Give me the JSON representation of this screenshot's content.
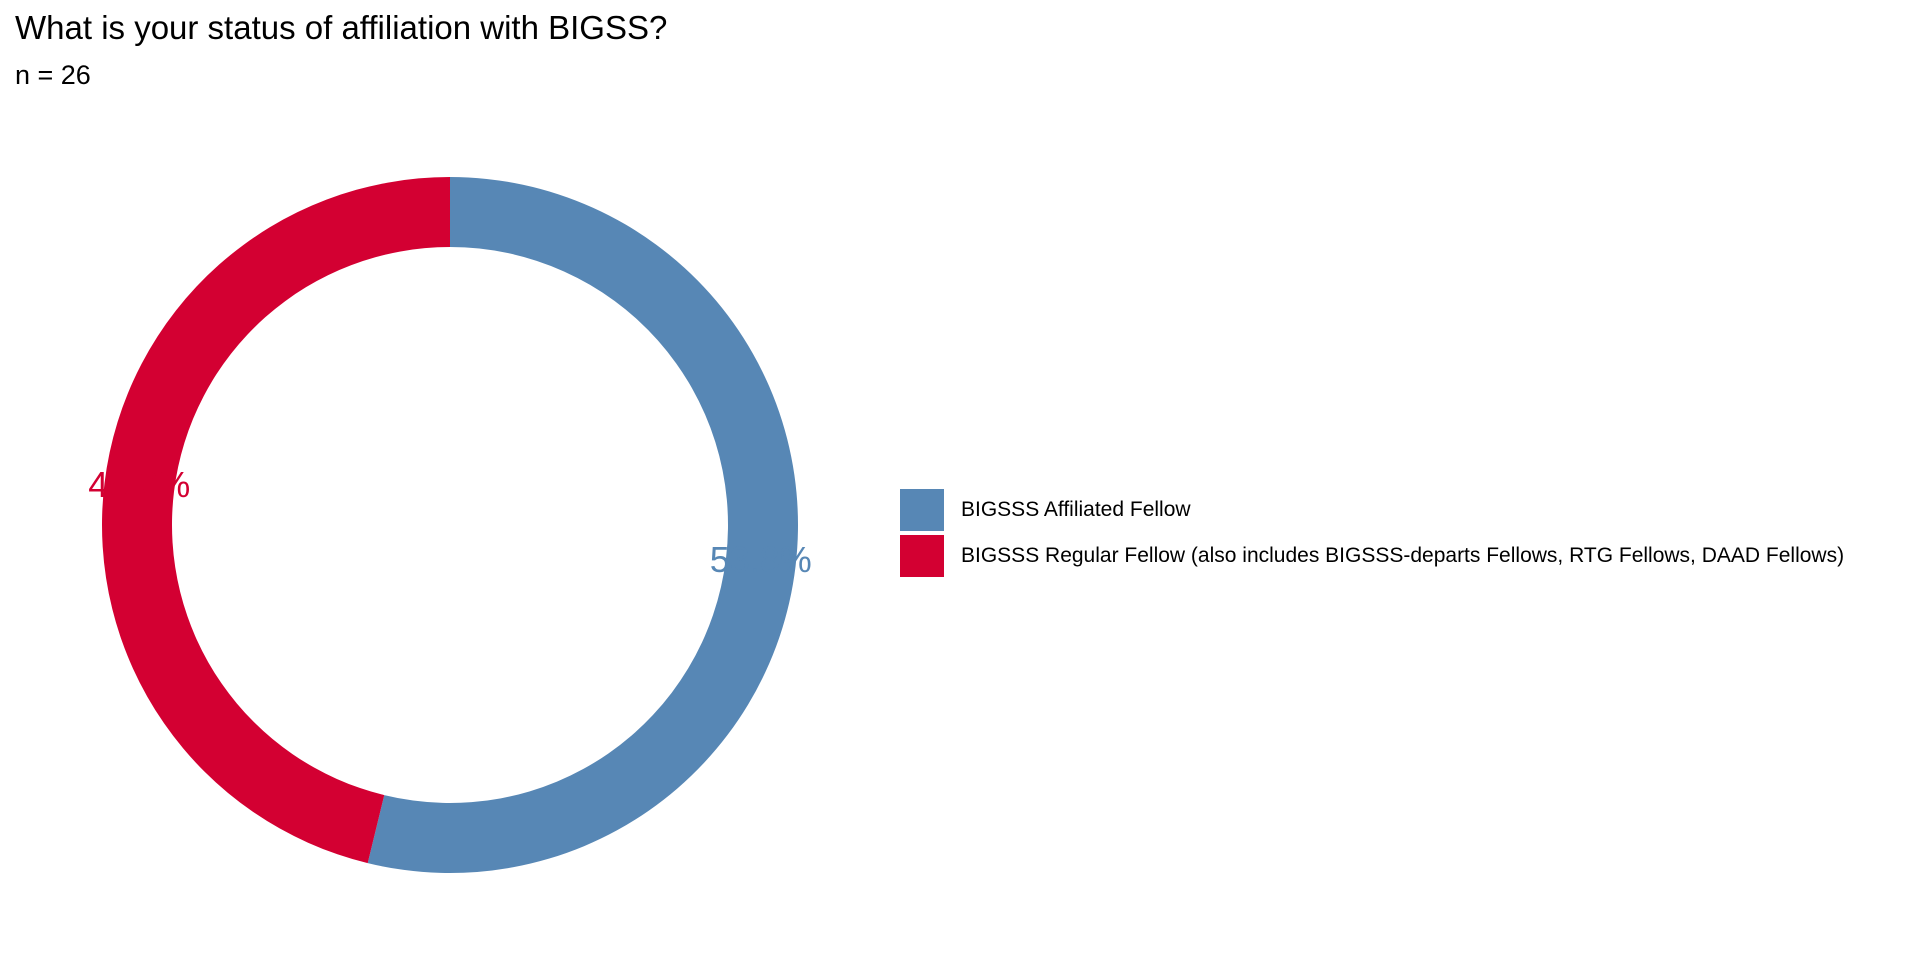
{
  "chart_data": {
    "type": "pie",
    "style": "donut",
    "title": "What is your status of affiliation with BIGSS?",
    "subtitle": "n = 26",
    "categories": [
      "BIGSSS Affiliated Fellow",
      "BIGSSS Regular Fellow (also includes BIGSSS-departs Fellows, RTG Fellows, DAAD Fellows)"
    ],
    "values": [
      53.8,
      46.2
    ],
    "value_labels": [
      "53.8%",
      "46.2%"
    ],
    "colors": [
      "#5787b5",
      "#d30032"
    ],
    "legend_position": "right"
  }
}
